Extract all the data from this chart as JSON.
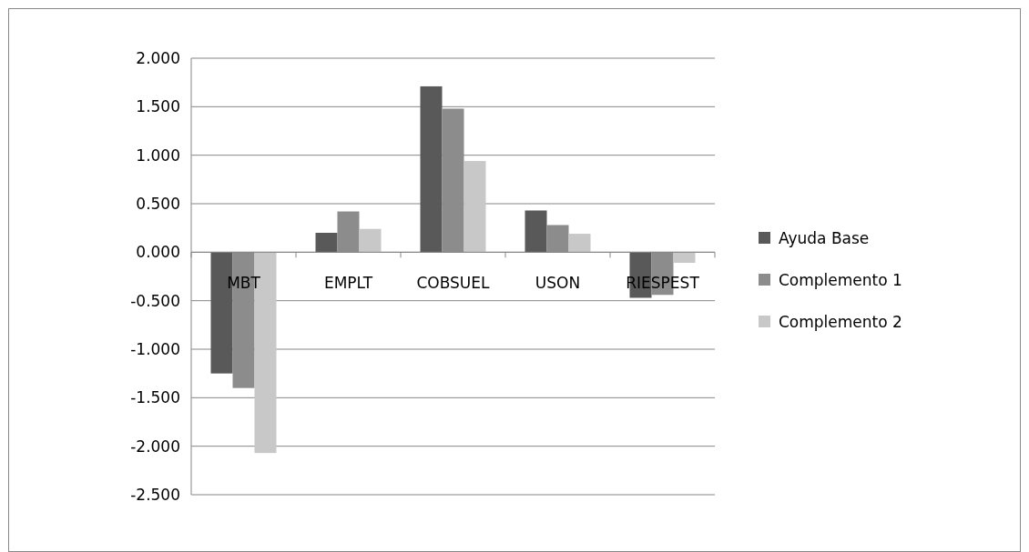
{
  "chart_data": {
    "type": "bar",
    "categories": [
      "MBT",
      "EMPLT",
      "COBSUEL",
      "USON",
      "RIESPEST"
    ],
    "series": [
      {
        "name": "Ayuda Base",
        "color": "#595959",
        "values": [
          -1.25,
          0.2,
          1.71,
          0.43,
          -0.47
        ]
      },
      {
        "name": "Complemento 1",
        "color": "#8c8c8c",
        "values": [
          -1.4,
          0.42,
          1.48,
          0.28,
          -0.44
        ]
      },
      {
        "name": "Complemento 2",
        "color": "#c8c8c8",
        "values": [
          -2.07,
          0.24,
          0.94,
          0.19,
          -0.11
        ]
      }
    ],
    "ylim": [
      -2.5,
      2
    ],
    "yticks": [
      {
        "value": -2.5,
        "label": "-2.500"
      },
      {
        "value": -2,
        "label": "-2.000"
      },
      {
        "value": -1.5,
        "label": "-1.500"
      },
      {
        "value": -1,
        "label": "-1.000"
      },
      {
        "value": -0.5,
        "label": "-0.500"
      },
      {
        "value": 0,
        "label": "0.000"
      },
      {
        "value": 0.5,
        "label": "0.500"
      },
      {
        "value": 1,
        "label": "1.000"
      },
      {
        "value": 1.5,
        "label": "1.500"
      },
      {
        "value": 2,
        "label": "2.000"
      }
    ],
    "grid": "y",
    "legend": "right"
  }
}
